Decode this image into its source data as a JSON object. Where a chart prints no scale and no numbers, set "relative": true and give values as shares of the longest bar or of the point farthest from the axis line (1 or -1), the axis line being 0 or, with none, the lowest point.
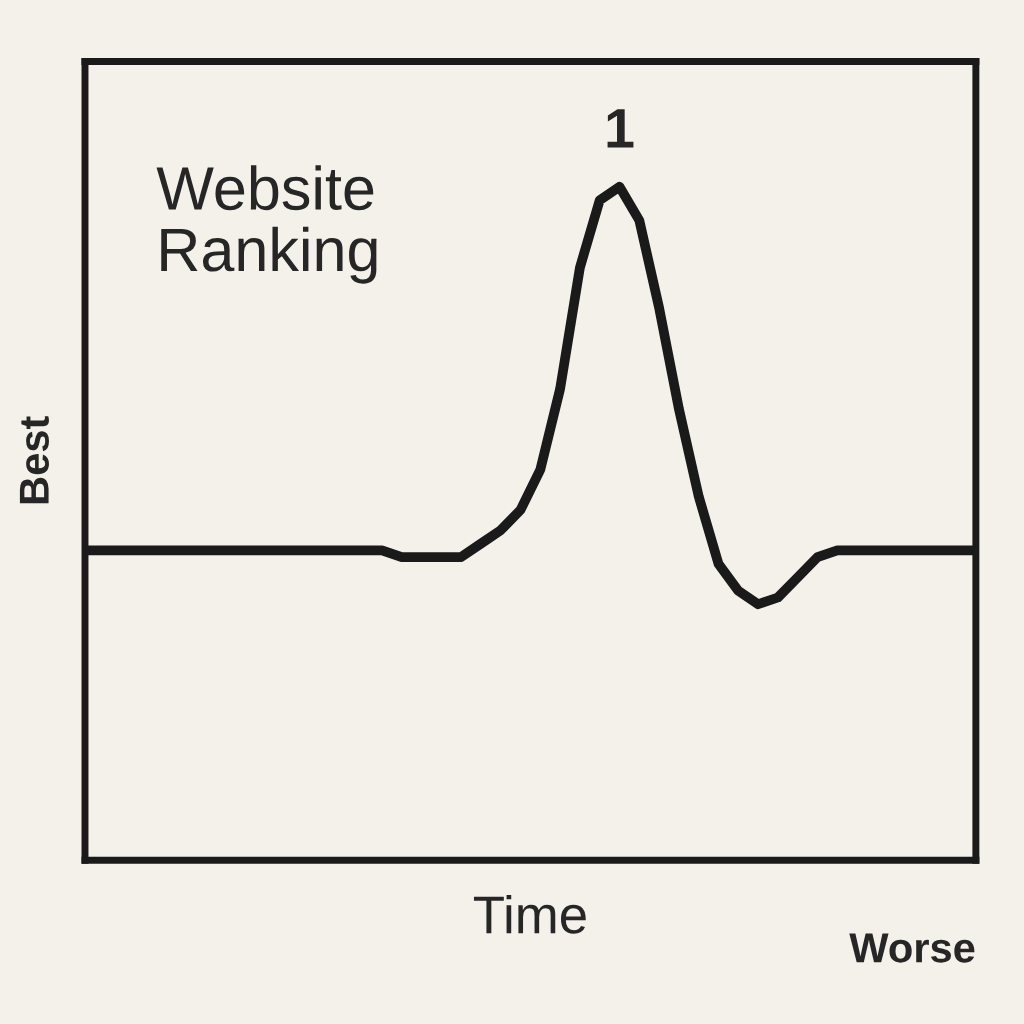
{
  "chart_data": {
    "type": "line",
    "title": "Website Ranking",
    "xlabel": "Time",
    "ylabel": "Best",
    "annotations": [
      "1",
      "Worse"
    ],
    "relative": true,
    "marker": "none",
    "line_style": "solid",
    "categories": [
      null,
      null,
      null,
      null,
      null,
      null,
      null,
      null,
      null,
      null,
      null,
      null,
      null,
      null,
      null,
      null,
      null,
      null,
      null,
      null,
      null,
      null,
      null,
      null,
      null,
      null,
      null,
      null,
      null,
      null,
      null,
      null,
      null,
      null,
      null,
      null,
      null,
      null,
      null,
      null,
      null,
      null,
      null,
      null,
      null,
      null
    ],
    "series": [
      {
        "color": "#1a1a1a",
        "values": [
          0.46,
          0.46,
          0.46,
          0.46,
          0.46,
          0.46,
          0.46,
          0.46,
          0.46,
          0.46,
          0.46,
          0.46,
          0.46,
          0.46,
          0.46,
          0.46,
          0.45,
          0.45,
          0.45,
          0.45,
          0.47,
          0.49,
          0.52,
          0.58,
          0.7,
          0.88,
          0.98,
          1.0,
          0.95,
          0.82,
          0.67,
          0.54,
          0.44,
          0.4,
          0.38,
          0.39,
          0.42,
          0.45,
          0.46,
          0.46,
          0.46,
          0.46,
          0.46,
          0.46,
          0.46,
          0.46
        ]
      }
    ]
  }
}
